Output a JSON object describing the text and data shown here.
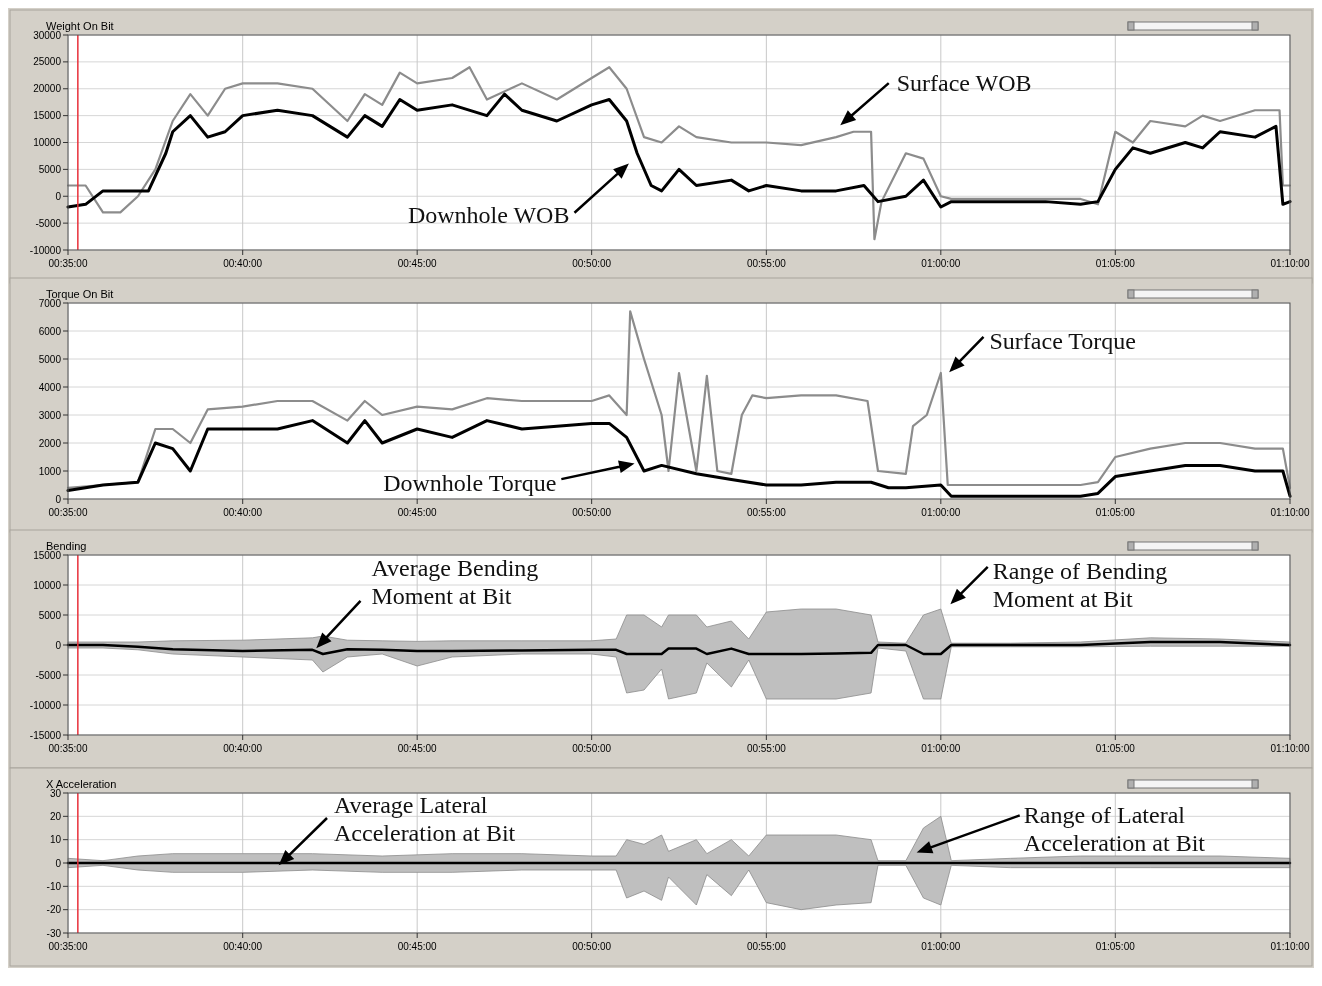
{
  "chart_data": [
    {
      "type": "line",
      "title": "Weight On Bit",
      "xlim": [
        0.5833,
        1.1667
      ],
      "ylim": [
        -10000,
        30000
      ],
      "yticks": [
        -10000,
        -5000,
        0,
        5000,
        10000,
        15000,
        20000,
        25000,
        30000
      ],
      "xticks": [
        {
          "value": 0.5833,
          "label": "00:35:00"
        },
        {
          "value": 0.6667,
          "label": "00:40:00"
        },
        {
          "value": 0.75,
          "label": "00:45:00"
        },
        {
          "value": 0.8333,
          "label": "00:50:00"
        },
        {
          "value": 0.9167,
          "label": "00:55:00"
        },
        {
          "value": 1,
          "label": "01:00:00"
        },
        {
          "value": 1.0833,
          "label": "01:05:00"
        },
        {
          "value": 1.1667,
          "label": "01:10:00"
        }
      ],
      "grid": true,
      "marker": "none",
      "line_style": "solid",
      "ref_lines": [
        {
          "axis": "x",
          "value": 0.588,
          "color": "#e8303a"
        }
      ],
      "series": [
        {
          "color": "#8c8c8c",
          "x": [
            0.5833,
            0.5917,
            0.6,
            0.6083,
            0.6167,
            0.625,
            0.6333,
            0.6417,
            0.65,
            0.6583,
            0.6667,
            0.6833,
            0.7,
            0.7167,
            0.725,
            0.7333,
            0.7417,
            0.75,
            0.7667,
            0.775,
            0.7833,
            0.8,
            0.8167,
            0.8333,
            0.8417,
            0.85,
            0.8583,
            0.8667,
            0.875,
            0.8833,
            0.9,
            0.9167,
            0.9333,
            0.95,
            0.9583,
            0.9667,
            0.9683,
            0.9717,
            0.9833,
            0.9917,
            1,
            1.005,
            1.0167,
            1.0333,
            1.05,
            1.0667,
            1.075,
            1.0833,
            1.0917,
            1.1,
            1.1167,
            1.125,
            1.1333,
            1.15,
            1.1617,
            1.1633,
            1.1667
          ],
          "values": [
            2000,
            2000,
            -3000,
            -3000,
            0,
            5000,
            14000,
            19000,
            15000,
            20000,
            21000,
            21000,
            20000,
            14000,
            19000,
            17000,
            23000,
            21000,
            22000,
            24000,
            18000,
            21000,
            18000,
            22000,
            24000,
            20000,
            11000,
            10000,
            13000,
            11000,
            10000,
            10000,
            9500,
            11000,
            12000,
            12000,
            -8000,
            -1000,
            8000,
            7000,
            0,
            -500,
            -500,
            -500,
            -500,
            -500,
            -1500,
            12000,
            10000,
            14000,
            13000,
            15000,
            14000,
            16000,
            16000,
            2000,
            2000
          ]
        },
        {
          "color": "#000000",
          "x": [
            0.5833,
            0.5917,
            0.6,
            0.6167,
            0.6217,
            0.63,
            0.6333,
            0.6417,
            0.65,
            0.6583,
            0.6667,
            0.6833,
            0.7,
            0.7167,
            0.725,
            0.7333,
            0.7417,
            0.75,
            0.7667,
            0.7833,
            0.7917,
            0.8,
            0.8167,
            0.8333,
            0.8417,
            0.85,
            0.855,
            0.8617,
            0.8667,
            0.875,
            0.8833,
            0.9,
            0.9083,
            0.9167,
            0.9333,
            0.95,
            0.9633,
            0.97,
            0.9833,
            0.9917,
            1,
            1.005,
            1.0167,
            1.0333,
            1.05,
            1.0667,
            1.075,
            1.0833,
            1.0917,
            1.1,
            1.1167,
            1.125,
            1.1333,
            1.15,
            1.16,
            1.1633,
            1.1667
          ],
          "values": [
            -2000,
            -1500,
            1000,
            1000,
            1000,
            8000,
            12000,
            15000,
            11000,
            12000,
            15000,
            16000,
            15000,
            11000,
            15000,
            13000,
            18000,
            16000,
            17000,
            15000,
            19000,
            16000,
            14000,
            17000,
            18000,
            14000,
            8000,
            2000,
            1000,
            5000,
            2000,
            3000,
            1000,
            2000,
            1000,
            1000,
            2000,
            -1000,
            0,
            3000,
            -2000,
            -1000,
            -1000,
            -1000,
            -1000,
            -1500,
            -1000,
            5000,
            9000,
            8000,
            10000,
            9000,
            12000,
            11000,
            13000,
            -1500,
            -1000
          ]
        }
      ],
      "annotations": [
        "Surface WOB",
        "Downhole WOB"
      ]
    },
    {
      "type": "line",
      "title": "Torque On Bit",
      "xlim": [
        0.5833,
        1.1667
      ],
      "ylim": [
        0,
        7000
      ],
      "yticks": [
        0,
        1000,
        2000,
        3000,
        4000,
        5000,
        6000,
        7000
      ],
      "xticks": [
        {
          "value": 0.5833,
          "label": "00:35:00"
        },
        {
          "value": 0.6667,
          "label": "00:40:00"
        },
        {
          "value": 0.75,
          "label": "00:45:00"
        },
        {
          "value": 0.8333,
          "label": "00:50:00"
        },
        {
          "value": 0.9167,
          "label": "00:55:00"
        },
        {
          "value": 1,
          "label": "01:00:00"
        },
        {
          "value": 1.0833,
          "label": "01:05:00"
        },
        {
          "value": 1.1667,
          "label": "01:10:00"
        }
      ],
      "grid": true,
      "marker": "none",
      "line_style": "solid",
      "series": [
        {
          "color": "#8c8c8c",
          "x": [
            0.5833,
            0.6,
            0.6167,
            0.625,
            0.6333,
            0.6417,
            0.65,
            0.6667,
            0.6833,
            0.7,
            0.7167,
            0.725,
            0.7333,
            0.75,
            0.7667,
            0.7833,
            0.8,
            0.8167,
            0.8333,
            0.8417,
            0.85,
            0.8517,
            0.8583,
            0.8667,
            0.87,
            0.875,
            0.8833,
            0.8883,
            0.8933,
            0.9,
            0.905,
            0.91,
            0.9167,
            0.9333,
            0.95,
            0.965,
            0.97,
            0.9833,
            0.9867,
            0.9933,
            1,
            1.0033,
            1.0333,
            1.0667,
            1.075,
            1.0833,
            1.1,
            1.1167,
            1.1333,
            1.15,
            1.1633,
            1.1667
          ],
          "values": [
            400,
            500,
            600,
            2500,
            2500,
            2000,
            3200,
            3300,
            3500,
            3500,
            2800,
            3500,
            3000,
            3300,
            3200,
            3600,
            3500,
            3500,
            3500,
            3700,
            3000,
            6700,
            5000,
            3000,
            1000,
            4500,
            1000,
            4400,
            1000,
            900,
            3000,
            3700,
            3600,
            3700,
            3700,
            3500,
            1000,
            900,
            2600,
            3000,
            4500,
            500,
            500,
            500,
            600,
            1500,
            1800,
            2000,
            2000,
            1800,
            1800,
            400
          ]
        },
        {
          "color": "#000000",
          "x": [
            0.5833,
            0.6,
            0.6167,
            0.625,
            0.6333,
            0.6417,
            0.65,
            0.6667,
            0.6833,
            0.7,
            0.7167,
            0.725,
            0.7333,
            0.75,
            0.7667,
            0.7833,
            0.8,
            0.8167,
            0.8333,
            0.8417,
            0.85,
            0.8583,
            0.8667,
            0.8833,
            0.9,
            0.9167,
            0.9333,
            0.95,
            0.9667,
            0.975,
            0.9833,
            1,
            1.005,
            1.0333,
            1.0667,
            1.075,
            1.0833,
            1.1,
            1.1167,
            1.1333,
            1.15,
            1.1633,
            1.1667
          ],
          "values": [
            300,
            500,
            600,
            2000,
            1800,
            1000,
            2500,
            2500,
            2500,
            2800,
            2000,
            2800,
            2000,
            2500,
            2200,
            2800,
            2500,
            2600,
            2700,
            2700,
            2200,
            1000,
            1200,
            900,
            700,
            500,
            500,
            600,
            600,
            400,
            400,
            500,
            100,
            100,
            100,
            200,
            800,
            1000,
            1200,
            1200,
            1000,
            1000,
            100
          ]
        }
      ],
      "annotations": [
        "Surface Torque",
        "Downhole Torque"
      ]
    },
    {
      "type": "line",
      "title": "Bending",
      "xlim": [
        0.5833,
        1.1667
      ],
      "ylim": [
        -15000,
        15000
      ],
      "yticks": [
        -15000,
        -10000,
        -5000,
        0,
        5000,
        10000,
        15000
      ],
      "xticks": [
        {
          "value": 0.5833,
          "label": "00:35:00"
        },
        {
          "value": 0.6667,
          "label": "00:40:00"
        },
        {
          "value": 0.75,
          "label": "00:45:00"
        },
        {
          "value": 0.8333,
          "label": "00:50:00"
        },
        {
          "value": 0.9167,
          "label": "00:55:00"
        },
        {
          "value": 1,
          "label": "01:00:00"
        },
        {
          "value": 1.0833,
          "label": "01:05:00"
        },
        {
          "value": 1.1667,
          "label": "01:10:00"
        }
      ],
      "grid": true,
      "marker": "none",
      "line_style": "solid",
      "ref_lines": [
        {
          "axis": "x",
          "value": 0.588,
          "color": "#e8303a"
        }
      ],
      "series": [
        {
          "color": "#000000",
          "x": [
            0.5833,
            0.6,
            0.6167,
            0.6333,
            0.6667,
            0.7,
            0.705,
            0.7167,
            0.7333,
            0.75,
            0.7667,
            0.8,
            0.8333,
            0.845,
            0.85,
            0.8583,
            0.8667,
            0.87,
            0.8833,
            0.8883,
            0.9,
            0.9083,
            0.9167,
            0.9333,
            0.95,
            0.9667,
            0.97,
            0.9833,
            0.9917,
            1,
            1.005,
            1.0333,
            1.0667,
            1.1,
            1.1333,
            1.1667
          ],
          "values": [
            0,
            0,
            -300,
            -700,
            -1000,
            -800,
            -1500,
            -700,
            -800,
            -1000,
            -1000,
            -900,
            -800,
            -800,
            -1500,
            -1500,
            -1500,
            -600,
            -600,
            -1500,
            -600,
            -1500,
            -1500,
            -1500,
            -1400,
            -1300,
            0,
            0,
            -1500,
            -1500,
            0,
            0,
            0,
            500,
            500,
            0
          ],
          "lower": [
            -500,
            -500,
            -800,
            -1500,
            -2000,
            -2500,
            -4500,
            -2000,
            -1500,
            -3500,
            -2000,
            -1500,
            -1500,
            -2000,
            -8000,
            -7500,
            -4000,
            -9000,
            -8000,
            -3000,
            -7000,
            -2500,
            -9000,
            -9000,
            -9000,
            -8000,
            -500,
            -1000,
            -9000,
            -9000,
            -300,
            -300,
            -300,
            -200,
            -200,
            -200
          ],
          "upper": [
            500,
            500,
            500,
            700,
            800,
            1200,
            1500,
            800,
            700,
            600,
            700,
            700,
            700,
            1000,
            5000,
            5000,
            3000,
            5000,
            5000,
            3000,
            4000,
            1000,
            5500,
            6000,
            6000,
            5000,
            500,
            300,
            5000,
            6000,
            300,
            300,
            500,
            1200,
            1000,
            500
          ]
        }
      ],
      "annotations": [
        "Average Bending\nMoment at Bit",
        "Range of Bending\nMoment at Bit"
      ]
    },
    {
      "type": "line",
      "title": "X Acceleration",
      "xlim": [
        0.5833,
        1.1667
      ],
      "ylim": [
        -30,
        30
      ],
      "yticks": [
        -30,
        -20,
        -10,
        0,
        10,
        20,
        30
      ],
      "xticks": [
        {
          "value": 0.5833,
          "label": "00:35:00"
        },
        {
          "value": 0.6667,
          "label": "00:40:00"
        },
        {
          "value": 0.75,
          "label": "00:45:00"
        },
        {
          "value": 0.8333,
          "label": "00:50:00"
        },
        {
          "value": 0.9167,
          "label": "00:55:00"
        },
        {
          "value": 1,
          "label": "01:00:00"
        },
        {
          "value": 1.0833,
          "label": "01:05:00"
        },
        {
          "value": 1.1667,
          "label": "01:10:00"
        }
      ],
      "grid": true,
      "marker": "none",
      "line_style": "solid",
      "ref_lines": [
        {
          "axis": "x",
          "value": 0.588,
          "color": "#e8303a"
        }
      ],
      "series": [
        {
          "color": "#000000",
          "x": [
            0.5833,
            0.6,
            0.6167,
            0.6333,
            0.6667,
            0.7,
            0.7333,
            0.7667,
            0.8,
            0.8333,
            0.845,
            0.85,
            0.8583,
            0.8667,
            0.87,
            0.8833,
            0.8883,
            0.9,
            0.9083,
            0.9167,
            0.9333,
            0.95,
            0.9667,
            0.97,
            0.9833,
            0.9917,
            1,
            1.005,
            1.0333,
            1.0667,
            1.1,
            1.1333,
            1.1667
          ],
          "values": [
            0,
            0,
            0,
            0,
            0,
            0,
            0,
            0,
            0,
            0,
            0,
            0,
            0,
            0,
            0,
            0,
            0,
            0,
            0,
            0,
            0,
            0,
            0,
            0,
            0,
            0,
            0,
            0,
            0,
            0,
            0,
            0,
            0
          ],
          "lower": [
            -2,
            -1,
            -3,
            -4,
            -4,
            -3,
            -4,
            -4,
            -3,
            -3,
            -3,
            -15,
            -12,
            -16,
            -6,
            -18,
            -5,
            -14,
            -3,
            -17,
            -20,
            -18,
            -17,
            -1,
            -1,
            -15,
            -18,
            -1,
            -2,
            -2,
            -2,
            -2,
            -2
          ],
          "upper": [
            2,
            1,
            3,
            4,
            4,
            4,
            3,
            4,
            4,
            3,
            3,
            10,
            8,
            12,
            5,
            10,
            4,
            10,
            3,
            12,
            12,
            12,
            10,
            1,
            1,
            15,
            20,
            1,
            2,
            3,
            3,
            3,
            2
          ]
        }
      ],
      "annotations": [
        {
          "text": "Average Lateral\nAcceleration at Bit",
          "x": 0.685,
          "y": 0
        },
        "Range of Lateral\nAcceleration at Bit"
      ]
    }
  ]
}
